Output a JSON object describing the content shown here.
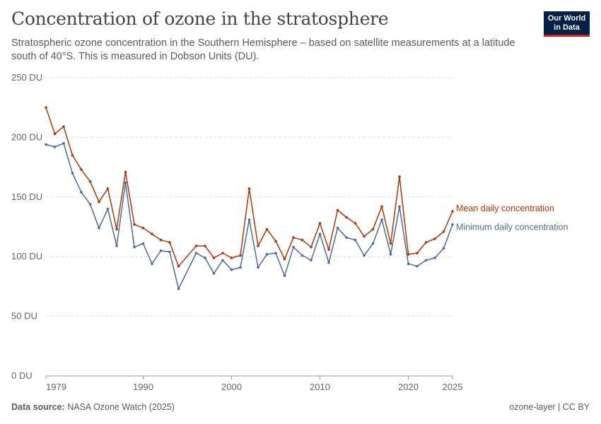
{
  "header": {
    "title": "Concentration of ozone in the stratosphere",
    "subtitle": "Stratospheric ozone concentration in the Southern Hemisphere – based on satellite measurements at a latitude south of 40°S. This is measured in Dobson Units (DU)."
  },
  "logo": {
    "line1": "Our World",
    "line2": "in Data"
  },
  "footer": {
    "source_label": "Data source:",
    "source_text": "NASA Ozone Watch (2025)",
    "right_text": "ozone-layer | CC BY"
  },
  "colors": {
    "mean": "#b13507",
    "minimum": "#4c6a9c",
    "grid": "#dddddd",
    "axis": "#999999"
  },
  "chart_data": {
    "type": "line",
    "title": "Concentration of ozone in the stratosphere",
    "ylim": [
      0,
      250
    ],
    "xlim": [
      1979,
      2025
    ],
    "y_ticks": [
      0,
      50,
      100,
      150,
      200,
      250
    ],
    "y_tick_labels": [
      "0 DU",
      "50 DU",
      "100 DU",
      "150 DU",
      "200 DU",
      "250 DU"
    ],
    "x_ticks": [
      1979,
      1990,
      2000,
      2010,
      2020,
      2025
    ],
    "x_tick_labels": [
      "1979",
      "1990",
      "2000",
      "2010",
      "2020",
      "2025"
    ],
    "grid": "horizontal dashed",
    "legend": "inline labels at right end of lines",
    "x": [
      1979,
      1980,
      1981,
      1982,
      1983,
      1984,
      1985,
      1986,
      1987,
      1988,
      1989,
      1990,
      1991,
      1992,
      1993,
      1994,
      1996,
      1997,
      1998,
      1999,
      2000,
      2001,
      2002,
      2003,
      2004,
      2005,
      2006,
      2007,
      2008,
      2009,
      2010,
      2011,
      2012,
      2013,
      2014,
      2015,
      2016,
      2017,
      2018,
      2019,
      2020,
      2021,
      2022,
      2023,
      2024,
      2025
    ],
    "series": [
      {
        "name": "Mean daily concentration",
        "values": [
          225,
          203,
          209,
          185,
          173,
          163,
          146,
          157,
          123,
          171,
          127,
          124,
          119,
          114,
          112,
          92,
          109,
          109,
          99,
          103,
          99,
          101,
          157,
          109,
          123,
          113,
          98,
          116,
          114,
          108,
          128,
          106,
          139,
          133,
          128,
          117,
          123,
          142,
          111,
          167,
          102,
          103,
          112,
          115,
          121,
          138
        ]
      },
      {
        "name": "Minimum daily concentration",
        "values": [
          194,
          192,
          195,
          170,
          154,
          144,
          124,
          140,
          109,
          162,
          108,
          111,
          94,
          105,
          104,
          73,
          103,
          99,
          86,
          97,
          89,
          91,
          131,
          91,
          102,
          103,
          84,
          108,
          101,
          97,
          119,
          95,
          124,
          116,
          114,
          101,
          111,
          131,
          102,
          142,
          94,
          92,
          97,
          99,
          107,
          127
        ]
      }
    ]
  }
}
